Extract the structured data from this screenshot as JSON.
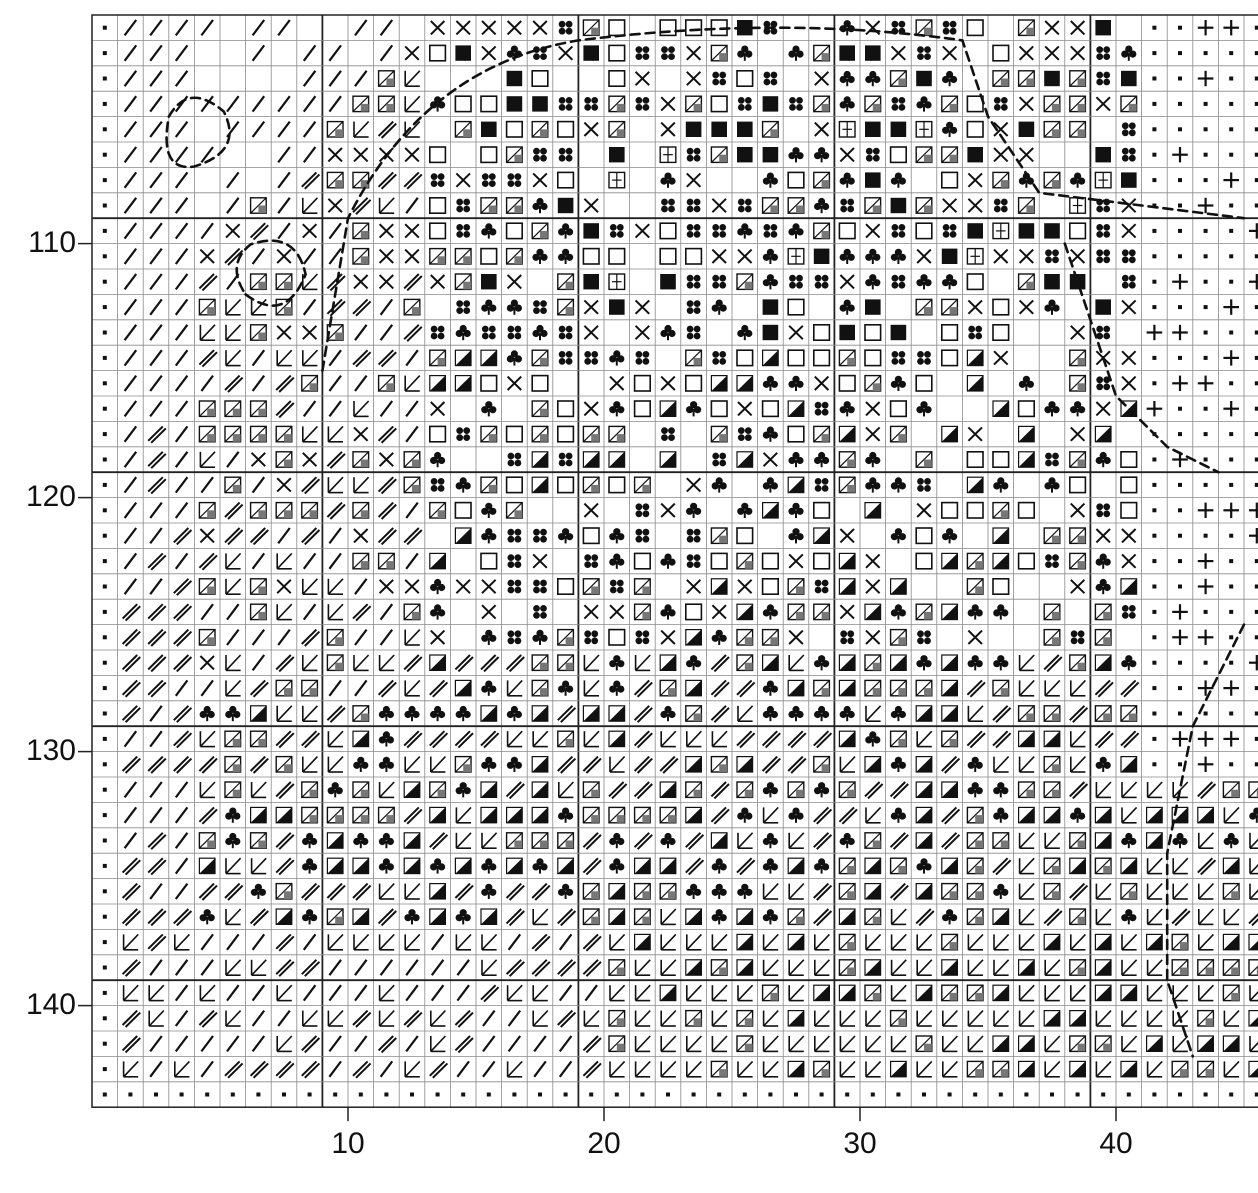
{
  "pattern": {
    "row_labels": [
      "110",
      "120",
      "130",
      "140"
    ],
    "col_labels": [
      "10",
      "20",
      "30",
      "40"
    ],
    "row_label_values": [
      110,
      120,
      130,
      140
    ],
    "col_label_values": [
      10,
      20,
      30,
      40
    ],
    "visible_rows": [
      102,
      144
    ],
    "visible_cols": [
      1,
      44
    ],
    "symbols": [
      "dot",
      "slash",
      "double-slash",
      "arrow-sw",
      "cross",
      "triangle",
      "club",
      "quatrefoil",
      "e-square",
      "open-square",
      "filled-square",
      "half-square",
      "plus",
      "diamond",
      "grid-square"
    ],
    "ink_color": "#111111",
    "grid_color": "#8a8a8a"
  }
}
